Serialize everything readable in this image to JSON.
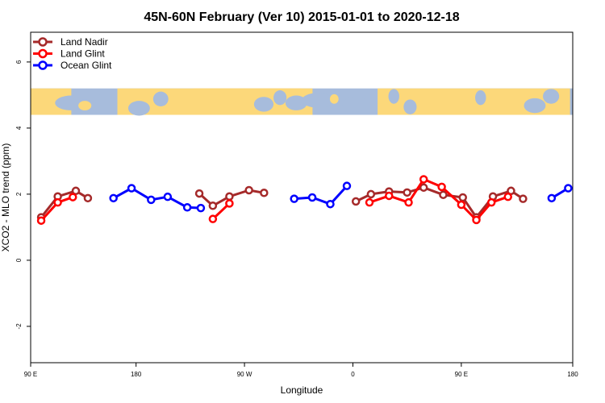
{
  "chart_data": {
    "type": "line",
    "title": "45N-60N February (Ver 10)   2015-01-01 to 2020-12-18",
    "xlabel": "Longitude",
    "ylabel": "XCO2 - MLO trend (ppm)",
    "xlim": [
      90,
      450
    ],
    "ylim": [
      -3.1,
      6.9
    ],
    "x_ticks": [
      {
        "value": 90,
        "label": "90 E"
      },
      {
        "value": 160,
        "label": "180"
      },
      {
        "value": 232,
        "label": "90 W"
      },
      {
        "value": 304,
        "label": "0"
      },
      {
        "value": 376,
        "label": "90 E"
      },
      {
        "value": 450,
        "label": "180"
      }
    ],
    "y_ticks": [
      {
        "value": -2,
        "label": "-2"
      },
      {
        "value": 0,
        "label": "0"
      },
      {
        "value": 2,
        "label": "2"
      },
      {
        "value": 4,
        "label": "4"
      },
      {
        "value": 6,
        "label": "6"
      }
    ],
    "map_strip": {
      "y_range": [
        4.4,
        5.2
      ],
      "ocean_color": "#a7bcdc",
      "land_color": "#fcd87a"
    },
    "legend_position": "top-left",
    "series": [
      {
        "name": "Land Nadir",
        "color": "#a52a2a",
        "segments": [
          [
            [
              97,
              1.3
            ],
            [
              108,
              1.93
            ],
            [
              120,
              2.1
            ],
            [
              128,
              1.88
            ]
          ],
          [
            [
              202,
              2.02
            ],
            [
              211,
              1.65
            ],
            [
              222,
              1.93
            ],
            [
              235,
              2.12
            ],
            [
              245,
              2.04
            ]
          ],
          [
            [
              306,
              1.78
            ],
            [
              316,
              2.0
            ],
            [
              328,
              2.08
            ],
            [
              340,
              2.05
            ],
            [
              351,
              2.2
            ],
            [
              364,
              1.98
            ],
            [
              377,
              1.9
            ],
            [
              386,
              1.3
            ],
            [
              397,
              1.93
            ],
            [
              409,
              2.1
            ],
            [
              417,
              1.86
            ]
          ]
        ]
      },
      {
        "name": "Land Glint",
        "color": "#ff0000",
        "segments": [
          [
            [
              97,
              1.2
            ],
            [
              108,
              1.75
            ],
            [
              118,
              1.91
            ]
          ],
          [
            [
              211,
              1.25
            ],
            [
              222,
              1.72
            ]
          ],
          [
            [
              315,
              1.75
            ],
            [
              328,
              1.95
            ],
            [
              341,
              1.75
            ],
            [
              351,
              2.45
            ],
            [
              363,
              2.22
            ],
            [
              376,
              1.68
            ],
            [
              386,
              1.22
            ],
            [
              396,
              1.75
            ],
            [
              407,
              1.92
            ]
          ]
        ]
      },
      {
        "name": "Ocean Glint",
        "color": "#0000ff",
        "segments": [
          [
            [
              145,
              1.88
            ],
            [
              157,
              2.18
            ],
            [
              170,
              1.83
            ],
            [
              181,
              1.92
            ],
            [
              194,
              1.6
            ],
            [
              203,
              1.58
            ]
          ],
          [
            [
              265,
              1.86
            ],
            [
              277,
              1.9
            ],
            [
              289,
              1.7
            ],
            [
              300,
              2.25
            ]
          ],
          [
            [
              436,
              1.88
            ],
            [
              447,
              2.18
            ]
          ]
        ]
      }
    ]
  }
}
